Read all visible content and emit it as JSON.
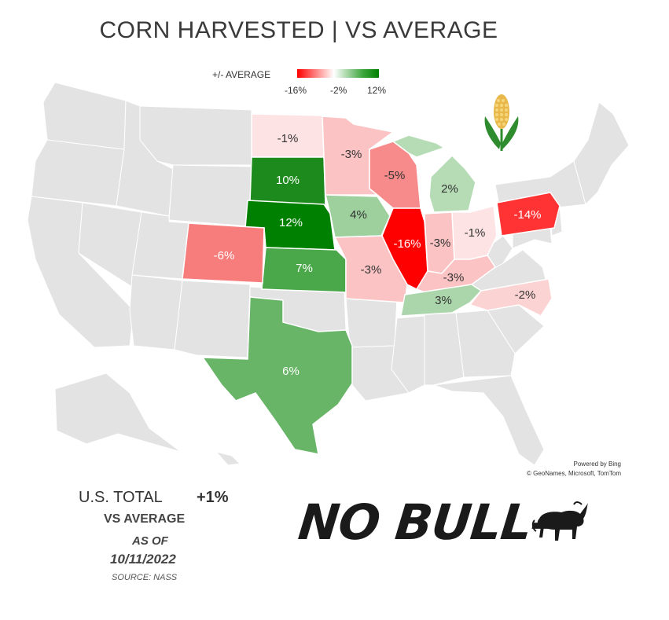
{
  "title": "CORN HARVESTED  |  VS AVERAGE",
  "legend": {
    "label": "+/- AVERAGE",
    "min_label": "-16%",
    "mid_label": "-2%",
    "max_label": "12%",
    "colors": {
      "low": "#ff0000",
      "mid": "#ffffff",
      "high": "#008000"
    }
  },
  "states": [
    {
      "id": "ND",
      "label": "-1%",
      "value": -1,
      "color": "#fde3e3",
      "text_color": "#333333"
    },
    {
      "id": "SD",
      "label": "10%",
      "value": 10,
      "color": "#1d8a1d",
      "text_color": "#ffffff"
    },
    {
      "id": "NE",
      "label": "12%",
      "value": 12,
      "color": "#008000",
      "text_color": "#ffffff"
    },
    {
      "id": "KS",
      "label": "7%",
      "value": 7,
      "color": "#4aa84a",
      "text_color": "#ffffff"
    },
    {
      "id": "CO",
      "label": "-6%",
      "value": -6,
      "color": "#f77c7c",
      "text_color": "#ffffff"
    },
    {
      "id": "TX",
      "label": "6%",
      "value": 6,
      "color": "#68b568",
      "text_color": "#ffffff"
    },
    {
      "id": "MN",
      "label": "-3%",
      "value": -3,
      "color": "#fbc3c3",
      "text_color": "#333333"
    },
    {
      "id": "IA",
      "label": "4%",
      "value": 4,
      "color": "#9dd09d",
      "text_color": "#333333"
    },
    {
      "id": "MO",
      "label": "-3%",
      "value": -3,
      "color": "#fbc3c3",
      "text_color": "#333333"
    },
    {
      "id": "WI",
      "label": "-5%",
      "value": -5,
      "color": "#f78a8a",
      "text_color": "#333333"
    },
    {
      "id": "IL",
      "label": "-16%",
      "value": -16,
      "color": "#ff0000",
      "text_color": "#ffffff"
    },
    {
      "id": "MI",
      "label": "2%",
      "value": 2,
      "color": "#b6dcb6",
      "text_color": "#333333"
    },
    {
      "id": "IN",
      "label": "-3%",
      "value": -3,
      "color": "#fbc3c3",
      "text_color": "#333333"
    },
    {
      "id": "OH",
      "label": "-1%",
      "value": -1,
      "color": "#fde3e3",
      "text_color": "#333333"
    },
    {
      "id": "KY",
      "label": "-3%",
      "value": -3,
      "color": "#fbc3c3",
      "text_color": "#333333"
    },
    {
      "id": "TN",
      "label": "3%",
      "value": 3,
      "color": "#abd6ab",
      "text_color": "#333333"
    },
    {
      "id": "NC",
      "label": "-2%",
      "value": -2,
      "color": "#fcd3d3",
      "text_color": "#333333"
    },
    {
      "id": "PA",
      "label": "-14%",
      "value": -14,
      "color": "#ff3333",
      "text_color": "#ffffff"
    }
  ],
  "attribution": {
    "line1": "Powered by Bing",
    "line2": "© GeoNames, Microsoft, TomTom"
  },
  "summary": {
    "total_label": "U.S. TOTAL",
    "total_value": "+1%",
    "vs_label": "VS AVERAGE",
    "as_of_label": "AS OF",
    "date": "10/11/2022",
    "source": "SOURCE: NASS"
  },
  "logo": {
    "text": "NO BULL—",
    "icon": "bull-icon"
  },
  "decor": {
    "corn_icon": "corn-icon",
    "base_state_color": "#e3e3e3",
    "border_color": "#ffffff"
  }
}
